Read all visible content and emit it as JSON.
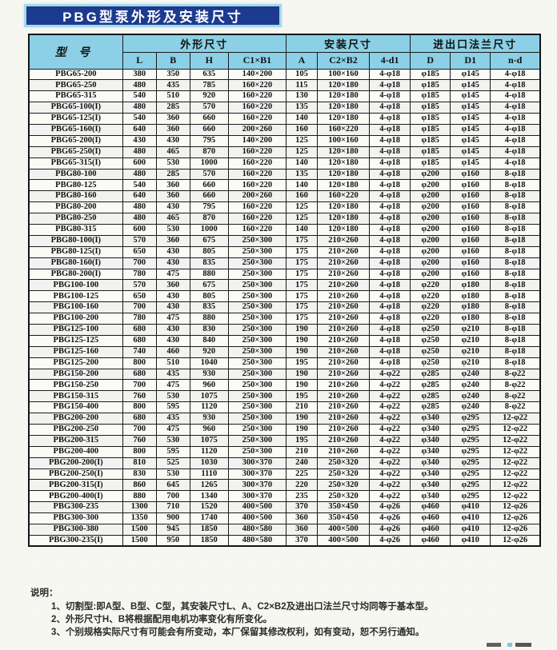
{
  "page": {
    "title": "PBG型泵外形及安装尺寸"
  },
  "colors": {
    "banner_bg": "#1c3a8e",
    "banner_border": "#a6d9ec",
    "header_bg": "#8bd0e6",
    "table_border": "#1a1a1a"
  },
  "table": {
    "model_header": "型  号",
    "groups": [
      {
        "label": "外形尺寸",
        "cols": [
          "L",
          "B",
          "H",
          "C1×B1"
        ]
      },
      {
        "label": "安装尺寸",
        "cols": [
          "A",
          "C2×B2",
          "4-d1"
        ]
      },
      {
        "label": "进出口法兰尺寸",
        "cols": [
          "D",
          "D1",
          "n-d"
        ]
      }
    ],
    "rows": [
      [
        "PBG65-200",
        "380",
        "350",
        "635",
        "140×200",
        "105",
        "100×160",
        "4-φ18",
        "φ185",
        "φ145",
        "4-φ18"
      ],
      [
        "PBG65-250",
        "480",
        "435",
        "785",
        "160×220",
        "115",
        "120×180",
        "4-φ18",
        "φ185",
        "φ145",
        "4-φ18"
      ],
      [
        "PBG65-315",
        "540",
        "510",
        "920",
        "160×220",
        "130",
        "120×180",
        "4-φ18",
        "φ185",
        "φ145",
        "4-φ18"
      ],
      [
        "PBG65-100(I)",
        "480",
        "285",
        "570",
        "160×220",
        "135",
        "120×180",
        "4-φ18",
        "φ185",
        "φ145",
        "4-φ18"
      ],
      [
        "PBG65-125(I)",
        "540",
        "360",
        "660",
        "160×220",
        "140",
        "120×180",
        "4-φ18",
        "φ185",
        "φ145",
        "4-φ18"
      ],
      [
        "PBG65-160(I)",
        "640",
        "360",
        "660",
        "200×260",
        "160",
        "160×220",
        "4-φ18",
        "φ185",
        "φ145",
        "4-φ18"
      ],
      [
        "PBG65-200(I)",
        "430",
        "430",
        "795",
        "140×200",
        "125",
        "100×160",
        "4-φ18",
        "φ185",
        "φ145",
        "4-φ18"
      ],
      [
        "PBG65-250(I)",
        "480",
        "465",
        "870",
        "160×220",
        "125",
        "120×180",
        "4-φ18",
        "φ185",
        "φ145",
        "4-φ18"
      ],
      [
        "PBG65-315(I)",
        "600",
        "530",
        "1000",
        "160×220",
        "140",
        "120×180",
        "4-φ18",
        "φ185",
        "φ145",
        "4-φ18"
      ],
      [
        "PBG80-100",
        "480",
        "285",
        "570",
        "160×220",
        "135",
        "120×180",
        "4-φ18",
        "φ200",
        "φ160",
        "8-φ18"
      ],
      [
        "PBG80-125",
        "540",
        "360",
        "660",
        "160×220",
        "140",
        "120×180",
        "4-φ18",
        "φ200",
        "φ160",
        "8-φ18"
      ],
      [
        "PBG80-160",
        "640",
        "360",
        "660",
        "200×260",
        "160",
        "160×220",
        "4-φ18",
        "φ200",
        "φ160",
        "8-φ18"
      ],
      [
        "PBG80-200",
        "480",
        "430",
        "795",
        "160×220",
        "125",
        "120×180",
        "4-φ18",
        "φ200",
        "φ160",
        "8-φ18"
      ],
      [
        "PBG80-250",
        "480",
        "465",
        "870",
        "160×220",
        "125",
        "120×180",
        "4-φ18",
        "φ200",
        "φ160",
        "8-φ18"
      ],
      [
        "PBG80-315",
        "600",
        "530",
        "1000",
        "160×220",
        "140",
        "120×180",
        "4-φ18",
        "φ200",
        "φ160",
        "8-φ18"
      ],
      [
        "PBG80-100(I)",
        "570",
        "360",
        "675",
        "250×300",
        "175",
        "210×260",
        "4-φ18",
        "φ200",
        "φ160",
        "8-φ18"
      ],
      [
        "PBG80-125(I)",
        "650",
        "430",
        "805",
        "250×300",
        "175",
        "210×260",
        "4-φ18",
        "φ200",
        "φ160",
        "8-φ18"
      ],
      [
        "PBG80-160(I)",
        "700",
        "430",
        "835",
        "250×300",
        "175",
        "210×260",
        "4-φ18",
        "φ200",
        "φ160",
        "8-φ18"
      ],
      [
        "PBG80-200(I)",
        "780",
        "475",
        "880",
        "250×300",
        "175",
        "210×260",
        "4-φ18",
        "φ200",
        "φ160",
        "8-φ18"
      ],
      [
        "PBG100-100",
        "570",
        "360",
        "675",
        "250×300",
        "175",
        "210×260",
        "4-φ18",
        "φ220",
        "φ180",
        "8-φ18"
      ],
      [
        "PBG100-125",
        "650",
        "430",
        "805",
        "250×300",
        "175",
        "210×260",
        "4-φ18",
        "φ220",
        "φ180",
        "8-φ18"
      ],
      [
        "PBG100-160",
        "700",
        "430",
        "835",
        "250×300",
        "175",
        "210×260",
        "4-φ18",
        "φ220",
        "φ180",
        "8-φ18"
      ],
      [
        "PBG100-200",
        "780",
        "475",
        "880",
        "250×300",
        "175",
        "210×260",
        "4-φ18",
        "φ220",
        "φ180",
        "8-φ18"
      ],
      [
        "PBG125-100",
        "680",
        "430",
        "830",
        "250×300",
        "190",
        "210×260",
        "4-φ18",
        "φ250",
        "φ210",
        "8-φ18"
      ],
      [
        "PBG125-125",
        "680",
        "430",
        "840",
        "250×300",
        "190",
        "210×260",
        "4-φ18",
        "φ250",
        "φ210",
        "8-φ18"
      ],
      [
        "PBG125-160",
        "740",
        "460",
        "920",
        "250×300",
        "190",
        "210×260",
        "4-φ18",
        "φ250",
        "φ210",
        "8-φ18"
      ],
      [
        "PBG125-200",
        "800",
        "510",
        "1040",
        "250×300",
        "195",
        "210×260",
        "4-φ18",
        "φ250",
        "φ210",
        "8-φ18"
      ],
      [
        "PBG150-200",
        "680",
        "435",
        "930",
        "250×300",
        "190",
        "210×260",
        "4-φ22",
        "φ285",
        "φ240",
        "8-φ22"
      ],
      [
        "PBG150-250",
        "700",
        "475",
        "960",
        "250×300",
        "190",
        "210×260",
        "4-φ22",
        "φ285",
        "φ240",
        "8-φ22"
      ],
      [
        "PBG150-315",
        "760",
        "530",
        "1075",
        "250×300",
        "195",
        "210×260",
        "4-φ22",
        "φ285",
        "φ240",
        "8-φ22"
      ],
      [
        "PBG150-400",
        "800",
        "595",
        "1120",
        "250×300",
        "210",
        "210×260",
        "4-φ22",
        "φ285",
        "φ240",
        "8-φ22"
      ],
      [
        "PBG200-200",
        "680",
        "435",
        "930",
        "250×300",
        "190",
        "210×260",
        "4-φ22",
        "φ340",
        "φ295",
        "12-φ22"
      ],
      [
        "PBG200-250",
        "700",
        "475",
        "960",
        "250×300",
        "190",
        "210×260",
        "4-φ22",
        "φ340",
        "φ295",
        "12-φ22"
      ],
      [
        "PBG200-315",
        "760",
        "530",
        "1075",
        "250×300",
        "195",
        "210×260",
        "4-φ22",
        "φ340",
        "φ295",
        "12-φ22"
      ],
      [
        "PBG200-400",
        "800",
        "595",
        "1120",
        "250×300",
        "210",
        "210×260",
        "4-φ22",
        "φ340",
        "φ295",
        "12-φ22"
      ],
      [
        "PBG200-200(I)",
        "810",
        "525",
        "1030",
        "300×370",
        "240",
        "250×320",
        "4-φ22",
        "φ340",
        "φ295",
        "12-φ22"
      ],
      [
        "PBG200-250(I)",
        "830",
        "530",
        "1110",
        "300×370",
        "225",
        "250×320",
        "4-φ22",
        "φ340",
        "φ295",
        "12-φ22"
      ],
      [
        "PBG200-315(I)",
        "860",
        "645",
        "1265",
        "300×370",
        "220",
        "250×320",
        "4-φ22",
        "φ340",
        "φ295",
        "12-φ22"
      ],
      [
        "PBG200-400(I)",
        "880",
        "700",
        "1340",
        "300×370",
        "235",
        "250×320",
        "4-φ22",
        "φ340",
        "φ295",
        "12-φ22"
      ],
      [
        "PBG300-235",
        "1300",
        "710",
        "1520",
        "400×500",
        "370",
        "350×450",
        "4-φ26",
        "φ460",
        "φ410",
        "12-φ26"
      ],
      [
        "PBG300-300",
        "1350",
        "900",
        "1740",
        "400×500",
        "360",
        "350×450",
        "4-φ26",
        "φ460",
        "φ410",
        "12-φ26"
      ],
      [
        "PBG300-380",
        "1500",
        "945",
        "1850",
        "480×580",
        "360",
        "400×500",
        "4-φ26",
        "φ460",
        "φ410",
        "12-φ26"
      ],
      [
        "PBG300-235(I)",
        "1500",
        "950",
        "1850",
        "480×580",
        "370",
        "400×500",
        "4-φ26",
        "φ460",
        "φ410",
        "12-φ26"
      ]
    ]
  },
  "notes": {
    "heading": "说明：",
    "items": [
      "1、切割型:即A型、B型、C型，其安装尺寸L、A、C2×B2及进出口法兰尺寸均同等于基本型。",
      "2、外形尺寸H、B将根据配用电机功率变化有所变化。",
      "3、个别规格实际尺寸有可能会有所变动，本厂保留其修改权利，如有变动，恕不另行通知。"
    ]
  }
}
